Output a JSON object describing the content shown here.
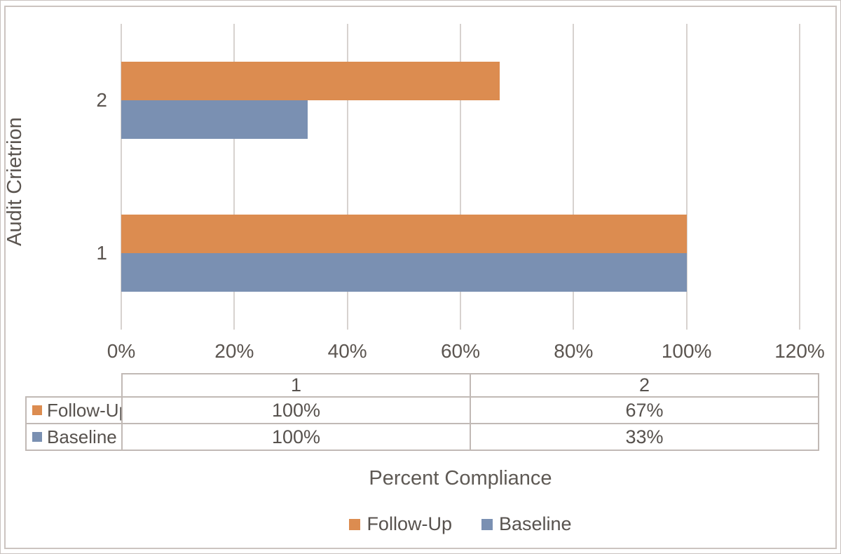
{
  "chart_data": {
    "type": "bar",
    "orientation": "horizontal",
    "title": "",
    "xlabel": "Percent Compliance",
    "ylabel": "Audit Crietrion",
    "categories": [
      "1",
      "2"
    ],
    "series": [
      {
        "name": "Follow-Up",
        "color": "#DC8C50",
        "values": [
          100,
          67
        ],
        "display_values": [
          "100%",
          "67%"
        ]
      },
      {
        "name": "Baseline",
        "color": "#7A90B2",
        "values": [
          100,
          33
        ],
        "display_values": [
          "100%",
          "33%"
        ]
      }
    ],
    "xlim": [
      0,
      120
    ],
    "xticks": [
      0,
      20,
      40,
      60,
      80,
      100,
      120
    ],
    "xtick_labels": [
      "0%",
      "20%",
      "40%",
      "60%",
      "80%",
      "100%",
      "120%"
    ],
    "grid": true,
    "legend_position": "bottom",
    "data_table_shown": true
  },
  "colors": {
    "background": "#FFFFFF",
    "text": "#5B5550",
    "frame_border": "#CCC4C0",
    "table_border": "#C1B9B5",
    "gridline": "#D7D2CF",
    "follow_up": "#DC8C50",
    "baseline": "#7A90B2"
  }
}
